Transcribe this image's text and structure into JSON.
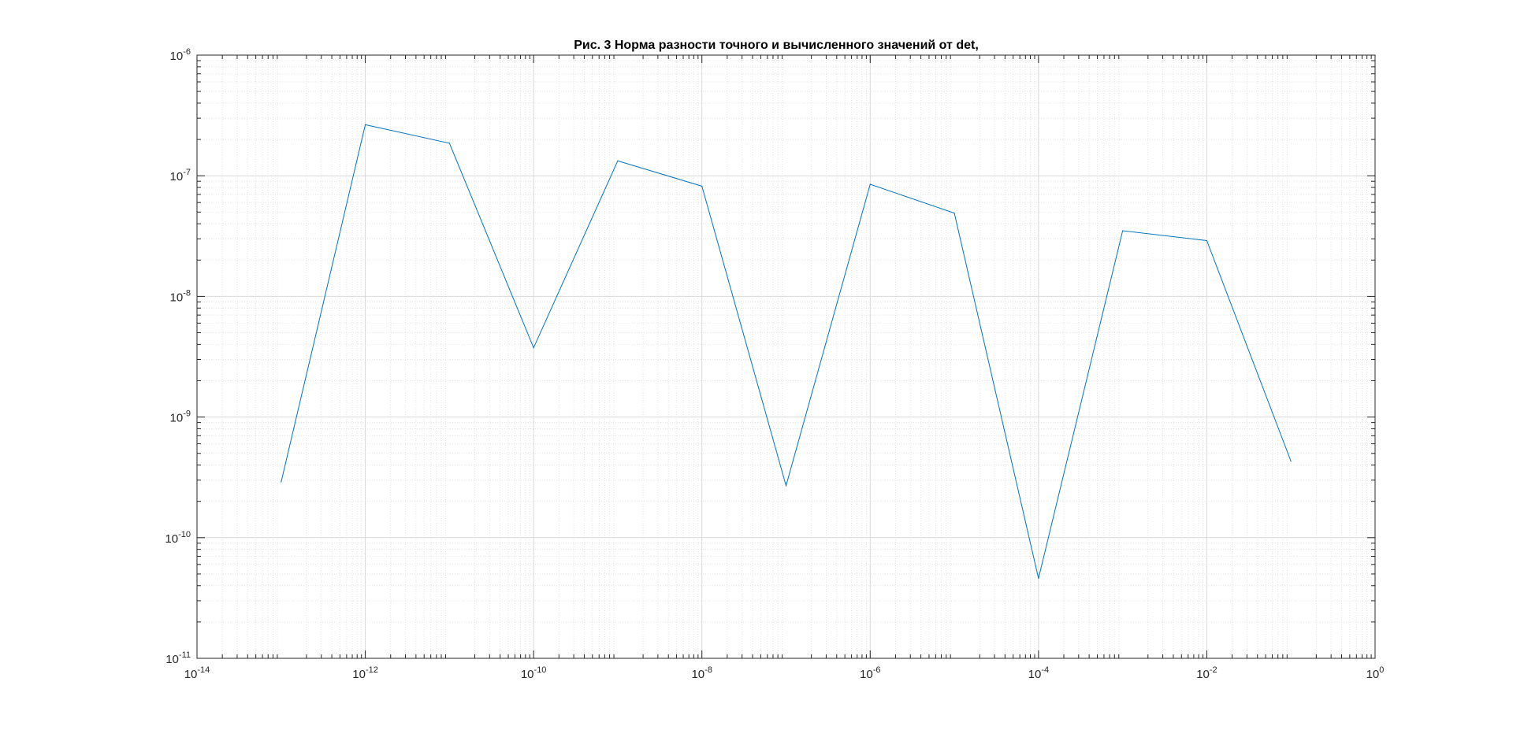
{
  "chart_data": {
    "type": "line",
    "title": "Рис. 3 Норма разности точного и вычисленного значений от det,",
    "xlabel": "",
    "ylabel": "",
    "xscale": "log",
    "yscale": "log",
    "xlim": [
      1e-14,
      1
    ],
    "ylim": [
      1e-11,
      1e-06
    ],
    "grid": "on",
    "minor_grid": "on",
    "series_color": "#0072BD",
    "x_ticks": [
      {
        "base": "10",
        "exp": "-14",
        "value": 1e-14
      },
      {
        "base": "10",
        "exp": "-12",
        "value": 1e-12
      },
      {
        "base": "10",
        "exp": "-10",
        "value": 1e-10
      },
      {
        "base": "10",
        "exp": "-8",
        "value": 1e-08
      },
      {
        "base": "10",
        "exp": "-6",
        "value": 1e-06
      },
      {
        "base": "10",
        "exp": "-4",
        "value": 0.0001
      },
      {
        "base": "10",
        "exp": "-2",
        "value": 0.01
      },
      {
        "base": "10",
        "exp": "0",
        "value": 1
      }
    ],
    "y_ticks": [
      {
        "base": "10",
        "exp": "-11",
        "value": 1e-11
      },
      {
        "base": "10",
        "exp": "-10",
        "value": 1e-10
      },
      {
        "base": "10",
        "exp": "-9",
        "value": 1e-09
      },
      {
        "base": "10",
        "exp": "-8",
        "value": 1e-08
      },
      {
        "base": "10",
        "exp": "-7",
        "value": 1e-07
      },
      {
        "base": "10",
        "exp": "-6",
        "value": 1e-06
      }
    ],
    "series": [
      {
        "x": [
          1e-13,
          1e-12,
          1e-11,
          1e-10,
          1e-09,
          1e-08,
          1e-07,
          1e-06,
          1e-05,
          0.0001,
          0.001,
          0.01,
          0.1
        ],
        "y": [
          2.9e-10,
          2.65e-07,
          1.86e-07,
          3.75e-09,
          1.33e-07,
          8.2e-08,
          2.7e-10,
          8.5e-08,
          4.9e-08,
          4.6e-11,
          3.5e-08,
          2.9e-08,
          4.3e-10
        ]
      }
    ]
  }
}
